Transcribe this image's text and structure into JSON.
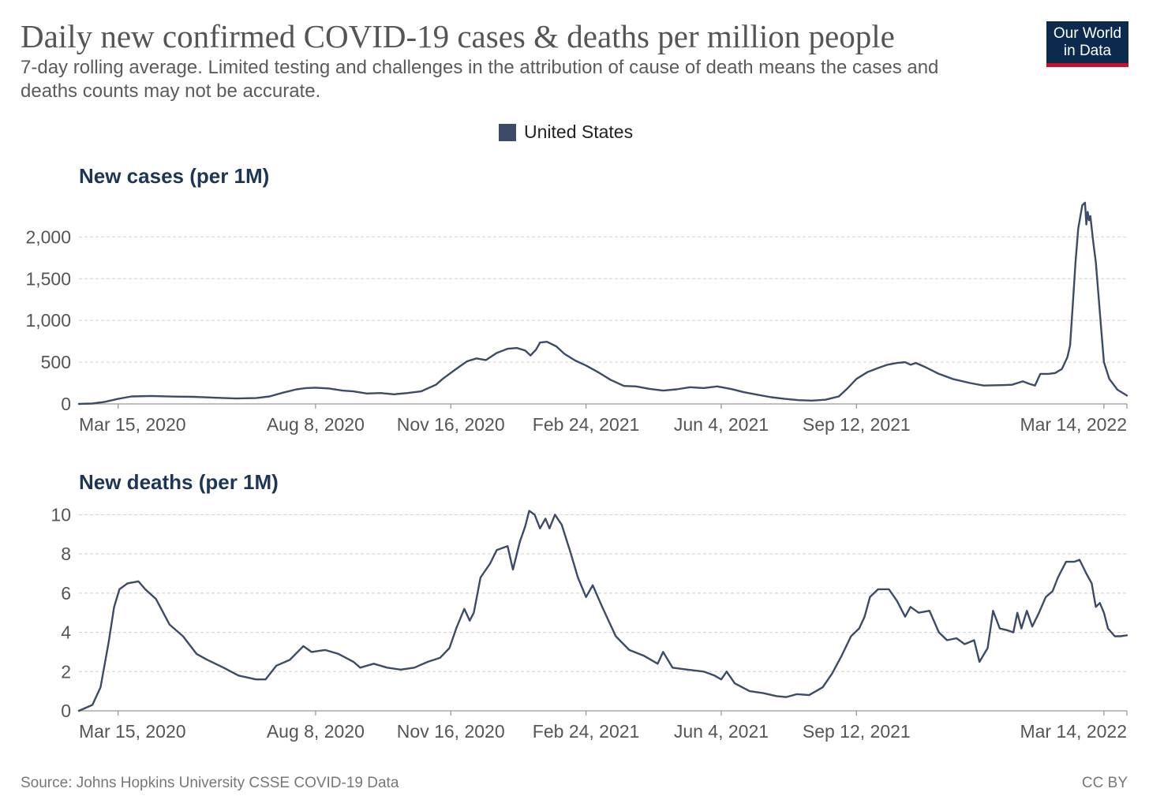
{
  "header": {
    "title": "Daily new confirmed COVID-19 cases & deaths per million people",
    "subtitle": "7-day rolling average. Limited testing and challenges in the attribution of cause of death means the cases and deaths counts may not be accurate.",
    "logo_line1": "Our World",
    "logo_line2": "in Data"
  },
  "legend": {
    "label": "United States",
    "color": "#3b4b68"
  },
  "footer": {
    "source": "Source: Johns Hopkins University CSSE COVID-19 Data",
    "license": "CC BY"
  },
  "chart_data": [
    {
      "type": "line",
      "title": "New cases (per 1M)",
      "ylim": [
        0,
        2400
      ],
      "yticks": [
        0,
        500,
        1000,
        1500,
        2000
      ],
      "ytick_labels": [
        "0",
        "500",
        "1,000",
        "1,500",
        "2,000"
      ],
      "xlim": [
        "2020-02-15",
        "2022-03-31"
      ],
      "xticks": [
        "2020-03-15",
        "2020-08-08",
        "2020-11-16",
        "2021-02-24",
        "2021-06-04",
        "2021-09-12",
        "2022-03-14"
      ],
      "xtick_labels": [
        "Mar 15, 2020",
        "Aug 8, 2020",
        "Nov 16, 2020",
        "Feb 24, 2021",
        "Jun 4, 2021",
        "Sep 12, 2021",
        "Mar 14, 2022"
      ],
      "grid": "horizontal-dashed",
      "series": [
        {
          "color": "#3b4b68",
          "points": [
            [
              "2020-02-15",
              0
            ],
            [
              "2020-02-25",
              5
            ],
            [
              "2020-03-05",
              25
            ],
            [
              "2020-03-15",
              60
            ],
            [
              "2020-03-25",
              90
            ],
            [
              "2020-04-08",
              95
            ],
            [
              "2020-04-25",
              88
            ],
            [
              "2020-05-10",
              85
            ],
            [
              "2020-05-25",
              75
            ],
            [
              "2020-06-10",
              65
            ],
            [
              "2020-06-25",
              70
            ],
            [
              "2020-07-05",
              90
            ],
            [
              "2020-07-15",
              135
            ],
            [
              "2020-07-25",
              175
            ],
            [
              "2020-08-01",
              190
            ],
            [
              "2020-08-08",
              195
            ],
            [
              "2020-08-18",
              185
            ],
            [
              "2020-08-28",
              160
            ],
            [
              "2020-09-05",
              150
            ],
            [
              "2020-09-15",
              125
            ],
            [
              "2020-09-25",
              130
            ],
            [
              "2020-10-05",
              115
            ],
            [
              "2020-10-15",
              130
            ],
            [
              "2020-10-25",
              150
            ],
            [
              "2020-11-05",
              230
            ],
            [
              "2020-11-10",
              300
            ],
            [
              "2020-11-20",
              420
            ],
            [
              "2020-11-28",
              510
            ],
            [
              "2020-12-05",
              545
            ],
            [
              "2020-12-12",
              525
            ],
            [
              "2020-12-20",
              610
            ],
            [
              "2020-12-28",
              660
            ],
            [
              "2021-01-04",
              670
            ],
            [
              "2021-01-10",
              640
            ],
            [
              "2021-01-14",
              580
            ],
            [
              "2021-01-18",
              650
            ],
            [
              "2021-01-21",
              735
            ],
            [
              "2021-01-26",
              745
            ],
            [
              "2021-02-02",
              690
            ],
            [
              "2021-02-08",
              600
            ],
            [
              "2021-02-16",
              520
            ],
            [
              "2021-02-24",
              460
            ],
            [
              "2021-03-05",
              380
            ],
            [
              "2021-03-14",
              290
            ],
            [
              "2021-03-24",
              215
            ],
            [
              "2021-04-02",
              210
            ],
            [
              "2021-04-12",
              180
            ],
            [
              "2021-04-22",
              160
            ],
            [
              "2021-05-02",
              175
            ],
            [
              "2021-05-12",
              200
            ],
            [
              "2021-05-22",
              190
            ],
            [
              "2021-06-01",
              210
            ],
            [
              "2021-06-11",
              180
            ],
            [
              "2021-06-21",
              140
            ],
            [
              "2021-07-01",
              110
            ],
            [
              "2021-07-11",
              80
            ],
            [
              "2021-07-21",
              60
            ],
            [
              "2021-07-31",
              45
            ],
            [
              "2021-08-10",
              40
            ],
            [
              "2021-08-20",
              50
            ],
            [
              "2021-08-30",
              90
            ],
            [
              "2021-09-05",
              180
            ],
            [
              "2021-09-12",
              300
            ],
            [
              "2021-09-20",
              380
            ],
            [
              "2021-09-28",
              430
            ],
            [
              "2021-10-05",
              470
            ],
            [
              "2021-10-12",
              490
            ],
            [
              "2021-10-18",
              500
            ],
            [
              "2021-10-22",
              470
            ],
            [
              "2021-10-26",
              490
            ],
            [
              "2021-11-02",
              440
            ],
            [
              "2021-11-12",
              360
            ],
            [
              "2021-11-22",
              300
            ],
            [
              "2021-12-05",
              250
            ],
            [
              "2021-12-15",
              220
            ],
            [
              "2021-12-28",
              225
            ],
            [
              "2022-01-05",
              230
            ],
            [
              "2022-01-13",
              270
            ],
            [
              "2022-01-18",
              240
            ],
            [
              "2022-01-22",
              220
            ],
            [
              "2022-01-26",
              360
            ],
            [
              "2022-02-01",
              360
            ],
            [
              "2022-02-06",
              370
            ],
            [
              "2022-02-11",
              420
            ],
            [
              "2022-02-15",
              560
            ],
            [
              "2022-02-17",
              700
            ],
            [
              "2022-02-19",
              1200
            ],
            [
              "2022-02-21",
              1700
            ],
            [
              "2022-02-23",
              2100
            ],
            [
              "2022-02-26",
              2380
            ],
            [
              "2022-02-28",
              2410
            ],
            [
              "2022-03-01",
              2150
            ],
            [
              "2022-03-02",
              2300
            ],
            [
              "2022-03-03",
              2200
            ],
            [
              "2022-03-04",
              2250
            ],
            [
              "2022-03-06",
              1950
            ],
            [
              "2022-03-08",
              1700
            ],
            [
              "2022-03-10",
              1300
            ],
            [
              "2022-03-12",
              900
            ],
            [
              "2022-03-14",
              500
            ],
            [
              "2022-03-18",
              300
            ],
            [
              "2022-03-24",
              170
            ],
            [
              "2022-03-31",
              100
            ]
          ]
        }
      ]
    },
    {
      "type": "line",
      "title": "New deaths (per 1M)",
      "ylim": [
        0,
        10.5
      ],
      "yticks": [
        0,
        2,
        4,
        6,
        8,
        10
      ],
      "ytick_labels": [
        "0",
        "2",
        "4",
        "6",
        "8",
        "10"
      ],
      "xlim": [
        "2020-02-15",
        "2022-03-31"
      ],
      "xticks": [
        "2020-03-15",
        "2020-08-08",
        "2020-11-16",
        "2021-02-24",
        "2021-06-04",
        "2021-09-12",
        "2022-03-14"
      ],
      "xtick_labels": [
        "Mar 15, 2020",
        "Aug 8, 2020",
        "Nov 16, 2020",
        "Feb 24, 2021",
        "Jun 4, 2021",
        "Sep 12, 2021",
        "Mar 14, 2022"
      ],
      "grid": "horizontal-dashed",
      "series": [
        {
          "color": "#3b4b68",
          "points": [
            [
              "2020-02-15",
              0
            ],
            [
              "2020-02-25",
              0.3
            ],
            [
              "2020-03-02",
              1.2
            ],
            [
              "2020-03-08",
              3.5
            ],
            [
              "2020-03-12",
              5.3
            ],
            [
              "2020-03-16",
              6.2
            ],
            [
              "2020-03-22",
              6.5
            ],
            [
              "2020-03-30",
              6.6
            ],
            [
              "2020-04-04",
              6.2
            ],
            [
              "2020-04-12",
              5.7
            ],
            [
              "2020-04-22",
              4.4
            ],
            [
              "2020-05-02",
              3.8
            ],
            [
              "2020-05-12",
              2.9
            ],
            [
              "2020-05-20",
              2.6
            ],
            [
              "2020-06-01",
              2.2
            ],
            [
              "2020-06-12",
              1.8
            ],
            [
              "2020-06-25",
              1.6
            ],
            [
              "2020-07-02",
              1.6
            ],
            [
              "2020-07-10",
              2.3
            ],
            [
              "2020-07-20",
              2.6
            ],
            [
              "2020-07-30",
              3.3
            ],
            [
              "2020-08-05",
              3.0
            ],
            [
              "2020-08-15",
              3.1
            ],
            [
              "2020-08-25",
              2.9
            ],
            [
              "2020-09-05",
              2.5
            ],
            [
              "2020-09-10",
              2.2
            ],
            [
              "2020-09-20",
              2.4
            ],
            [
              "2020-09-30",
              2.2
            ],
            [
              "2020-10-10",
              2.1
            ],
            [
              "2020-10-20",
              2.2
            ],
            [
              "2020-10-30",
              2.5
            ],
            [
              "2020-11-08",
              2.7
            ],
            [
              "2020-11-15",
              3.2
            ],
            [
              "2020-11-20",
              4.2
            ],
            [
              "2020-11-26",
              5.2
            ],
            [
              "2020-11-30",
              4.6
            ],
            [
              "2020-12-03",
              5.0
            ],
            [
              "2020-12-08",
              6.8
            ],
            [
              "2020-12-15",
              7.5
            ],
            [
              "2020-12-20",
              8.2
            ],
            [
              "2020-12-24",
              8.3
            ],
            [
              "2020-12-28",
              8.4
            ],
            [
              "2021-01-01",
              7.2
            ],
            [
              "2021-01-06",
              8.6
            ],
            [
              "2021-01-10",
              9.4
            ],
            [
              "2021-01-13",
              10.2
            ],
            [
              "2021-01-17",
              10.0
            ],
            [
              "2021-01-21",
              9.3
            ],
            [
              "2021-01-25",
              9.8
            ],
            [
              "2021-01-28",
              9.3
            ],
            [
              "2021-02-01",
              10.0
            ],
            [
              "2021-02-06",
              9.5
            ],
            [
              "2021-02-12",
              8.2
            ],
            [
              "2021-02-18",
              6.8
            ],
            [
              "2021-02-24",
              5.8
            ],
            [
              "2021-03-01",
              6.4
            ],
            [
              "2021-03-08",
              5.3
            ],
            [
              "2021-03-18",
              3.8
            ],
            [
              "2021-03-28",
              3.1
            ],
            [
              "2021-04-08",
              2.8
            ],
            [
              "2021-04-18",
              2.4
            ],
            [
              "2021-04-22",
              3.0
            ],
            [
              "2021-04-29",
              2.2
            ],
            [
              "2021-05-10",
              2.1
            ],
            [
              "2021-05-22",
              2.0
            ],
            [
              "2021-05-30",
              1.8
            ],
            [
              "2021-06-04",
              1.6
            ],
            [
              "2021-06-08",
              2.0
            ],
            [
              "2021-06-14",
              1.4
            ],
            [
              "2021-06-25",
              1.0
            ],
            [
              "2021-07-05",
              0.9
            ],
            [
              "2021-07-15",
              0.75
            ],
            [
              "2021-07-22",
              0.7
            ],
            [
              "2021-07-30",
              0.85
            ],
            [
              "2021-08-08",
              0.8
            ],
            [
              "2021-08-18",
              1.2
            ],
            [
              "2021-08-25",
              1.9
            ],
            [
              "2021-09-01",
              2.8
            ],
            [
              "2021-09-08",
              3.8
            ],
            [
              "2021-09-14",
              4.2
            ],
            [
              "2021-09-18",
              4.8
            ],
            [
              "2021-09-22",
              5.8
            ],
            [
              "2021-09-28",
              6.2
            ],
            [
              "2021-10-06",
              6.2
            ],
            [
              "2021-10-12",
              5.6
            ],
            [
              "2021-10-18",
              4.8
            ],
            [
              "2021-10-22",
              5.3
            ],
            [
              "2021-10-28",
              5.0
            ],
            [
              "2021-11-05",
              5.1
            ],
            [
              "2021-11-12",
              4.0
            ],
            [
              "2021-11-18",
              3.6
            ],
            [
              "2021-11-25",
              3.7
            ],
            [
              "2021-12-01",
              3.4
            ],
            [
              "2021-12-08",
              3.6
            ],
            [
              "2021-12-12",
              2.5
            ],
            [
              "2021-12-18",
              3.2
            ],
            [
              "2021-12-22",
              5.1
            ],
            [
              "2021-12-27",
              4.2
            ],
            [
              "2022-01-02",
              4.1
            ],
            [
              "2022-01-06",
              4.0
            ],
            [
              "2022-01-09",
              5.0
            ],
            [
              "2022-01-12",
              4.2
            ],
            [
              "2022-01-16",
              5.1
            ],
            [
              "2022-01-20",
              4.3
            ],
            [
              "2022-01-25",
              5.0
            ],
            [
              "2022-01-30",
              5.8
            ],
            [
              "2022-02-04",
              6.1
            ],
            [
              "2022-02-08",
              6.8
            ],
            [
              "2022-02-14",
              7.6
            ],
            [
              "2022-02-20",
              7.6
            ],
            [
              "2022-02-24",
              7.7
            ],
            [
              "2022-03-01",
              7.0
            ],
            [
              "2022-03-05",
              6.5
            ],
            [
              "2022-03-08",
              5.3
            ],
            [
              "2022-03-11",
              5.5
            ],
            [
              "2022-03-14",
              5.0
            ],
            [
              "2022-03-17",
              4.2
            ],
            [
              "2022-03-22",
              3.8
            ],
            [
              "2022-03-26",
              3.8
            ],
            [
              "2022-03-31",
              3.85
            ]
          ]
        }
      ]
    }
  ]
}
